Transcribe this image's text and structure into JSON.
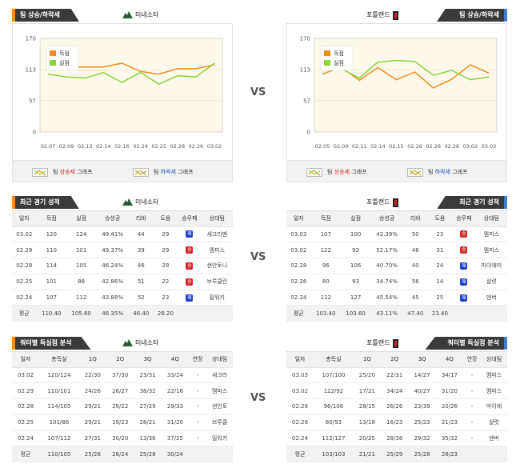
{
  "vs": "VS",
  "trend": {
    "left": {
      "tag": "팀 상승/하락세",
      "team": "미네소타",
      "yticks": [
        "170",
        "113",
        "57",
        "0"
      ],
      "xticks": [
        "02.07",
        "02.09",
        "02.13",
        "02.14",
        "02.16",
        "02.24",
        "02.25",
        "02.28",
        "02.29",
        "03.02"
      ],
      "legend": [
        "득점",
        "실점"
      ],
      "score": [
        125,
        118,
        118,
        118,
        125,
        110,
        105,
        115,
        115,
        122
      ],
      "allowed": [
        105,
        100,
        98,
        108,
        90,
        108,
        87,
        102,
        100,
        125
      ]
    },
    "right": {
      "tag": "팀 상승/하락세",
      "team": "포틀랜드",
      "yticks": [
        "170",
        "113",
        "57",
        "0"
      ],
      "xticks": [
        "02.05",
        "02.09",
        "02.11",
        "02.14",
        "02.15",
        "02.26",
        "02.26",
        "02.28",
        "03.02",
        "03.03"
      ],
      "legend": [
        "득점",
        "실점"
      ],
      "score": [
        105,
        118,
        94,
        117,
        95,
        109,
        80,
        96,
        122,
        107
      ],
      "allowed": [
        115,
        115,
        98,
        127,
        130,
        128,
        103,
        112,
        95,
        100
      ]
    },
    "legend_row": {
      "icon1_a": "팀 ",
      "icon1_b": "상승세",
      "icon1_c": " 그래프",
      "icon2_a": "팀 ",
      "icon2_b": "하락세",
      "icon2_c": " 그래프"
    },
    "colors": {
      "score": "#f28c1e",
      "allowed": "#8bd43a"
    }
  },
  "recent": {
    "left": {
      "tag": "최근 경기 성적",
      "team": "미네소타",
      "headers": [
        "일자",
        "득점",
        "실점",
        "승성공",
        "리바",
        "도움",
        "승무패",
        "상대팀"
      ],
      "rows": [
        [
          "03.02",
          "120",
          "124",
          "49.41%",
          "44",
          "29",
          "패",
          "새크라멘"
        ],
        [
          "02.29",
          "110",
          "101",
          "49.37%",
          "39",
          "29",
          "승",
          "멤피스"
        ],
        [
          "02.28",
          "114",
          "105",
          "46.24%",
          "46",
          "28",
          "승",
          "샌안토니"
        ],
        [
          "02.25",
          "101",
          "86",
          "42.86%",
          "51",
          "22",
          "승",
          "브루클린"
        ],
        [
          "02.24",
          "107",
          "112",
          "43.88%",
          "52",
          "23",
          "패",
          "밀워키"
        ]
      ],
      "avg": [
        "평균",
        "110.40",
        "105.60",
        "46.35%",
        "46.40",
        "26.20",
        "",
        ""
      ]
    },
    "right": {
      "tag": "최근 경기 성적",
      "team": "포틀랜드",
      "headers": [
        "일자",
        "득점",
        "실점",
        "승성공",
        "리바",
        "도움",
        "승무패",
        "상대팀"
      ],
      "rows": [
        [
          "03.03",
          "107",
          "100",
          "42.39%",
          "50",
          "23",
          "승",
          "멤피스"
        ],
        [
          "03.02",
          "122",
          "92",
          "52.17%",
          "46",
          "31",
          "승",
          "멤피스"
        ],
        [
          "02.28",
          "96",
          "106",
          "40.70%",
          "40",
          "24",
          "패",
          "마이애미"
        ],
        [
          "02.26",
          "80",
          "93",
          "34.74%",
          "56",
          "14",
          "패",
          "샬럿"
        ],
        [
          "02.24",
          "112",
          "127",
          "45.54%",
          "45",
          "25",
          "패",
          "덴버"
        ]
      ],
      "avg": [
        "평균",
        "103.40",
        "103.60",
        "43.11%",
        "47.40",
        "23.40",
        "",
        ""
      ]
    }
  },
  "quarter": {
    "left": {
      "tag": "쿼터별 득실점 분석",
      "team": "미네소타",
      "headers": [
        "일자",
        "총득실",
        "1Q",
        "2Q",
        "3Q",
        "4Q",
        "연장",
        "상대팀"
      ],
      "rows": [
        [
          "03.02",
          "120/124",
          "22/30",
          "37/30",
          "23/31",
          "33/24",
          "-",
          "새크라"
        ],
        [
          "02.29",
          "110/101",
          "24/26",
          "26/27",
          "38/32",
          "22/16",
          "-",
          "멤피스"
        ],
        [
          "02.28",
          "114/105",
          "29/21",
          "29/22",
          "27/29",
          "29/33",
          "-",
          "샌안토"
        ],
        [
          "02.25",
          "101/86",
          "29/21",
          "19/23",
          "28/21",
          "31/20",
          "-",
          "브루클"
        ],
        [
          "02.24",
          "107/112",
          "27/31",
          "30/20",
          "13/36",
          "37/25",
          "-",
          "밀워키"
        ]
      ],
      "avg": [
        "평균",
        "110/105",
        "25/26",
        "28/24",
        "25/28",
        "30/24",
        "",
        ""
      ]
    },
    "right": {
      "tag": "쿼터별 득실점 분석",
      "team": "포틀랜드",
      "headers": [
        "일자",
        "총득실",
        "1Q",
        "2Q",
        "3Q",
        "4Q",
        "연장",
        "상대팀"
      ],
      "rows": [
        [
          "03.03",
          "107/100",
          "25/20",
          "22/31",
          "14/27",
          "34/17",
          "-",
          "멤피스"
        ],
        [
          "03.02",
          "122/92",
          "17/21",
          "34/24",
          "40/27",
          "31/20",
          "-",
          "멤피스"
        ],
        [
          "02.28",
          "96/106",
          "28/15",
          "26/26",
          "23/39",
          "20/26",
          "-",
          "마이애"
        ],
        [
          "02.26",
          "80/93",
          "13/18",
          "16/23",
          "25/23",
          "21/23",
          "-",
          "샬럿"
        ],
        [
          "02.24",
          "112/127",
          "20/25",
          "28/38",
          "29/32",
          "35/32",
          "-",
          "덴버"
        ]
      ],
      "avg": [
        "평균",
        "103/103",
        "21/21",
        "25/29",
        "25/28",
        "28/23",
        "",
        ""
      ]
    }
  }
}
